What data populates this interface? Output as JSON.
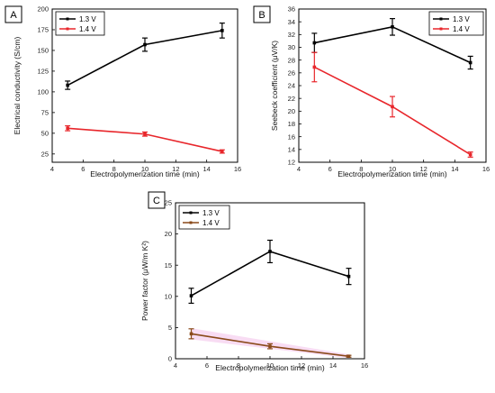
{
  "colors": {
    "series_13V": "#000000",
    "series_14V": "#e8262b",
    "series_14V_c": "#8a4a1a",
    "shade_c": "#f3c0ea"
  },
  "chart_data": [
    {
      "panel": "A",
      "type": "line",
      "xlabel": "Electropolymerization time (min)",
      "ylabel": "Electrical conductivity (S/cm)",
      "xlim": [
        4,
        16
      ],
      "ylim": [
        15,
        200
      ],
      "xticks": [
        "4",
        "6",
        "8",
        "10",
        "12",
        "14",
        "16"
      ],
      "yticks": [
        "25",
        "50",
        "75",
        "100",
        "125",
        "150",
        "175",
        "200"
      ],
      "legend_position": "top-left",
      "series": [
        {
          "name": "1.3 V",
          "color": "#000000",
          "x": [
            5,
            10,
            15
          ],
          "y": [
            108,
            157,
            174
          ],
          "err": [
            5,
            8,
            9
          ]
        },
        {
          "name": "1.4 V",
          "color": "#e8262b",
          "x": [
            5,
            10,
            15
          ],
          "y": [
            56,
            49,
            28
          ],
          "err": [
            3,
            2.5,
            2
          ]
        }
      ]
    },
    {
      "panel": "B",
      "type": "line",
      "xlabel": "Electropolymerization time (min)",
      "ylabel": "Seebeck coefficient (μV/K)",
      "xlim": [
        4,
        16
      ],
      "ylim": [
        12,
        36
      ],
      "xticks": [
        "4",
        "6",
        "8",
        "10",
        "12",
        "14",
        "16"
      ],
      "yticks": [
        "12",
        "14",
        "16",
        "18",
        "20",
        "22",
        "24",
        "26",
        "28",
        "30",
        "32",
        "34",
        "36"
      ],
      "legend_position": "top-right",
      "series": [
        {
          "name": "1.3 V",
          "color": "#000000",
          "x": [
            5,
            10,
            15
          ],
          "y": [
            30.7,
            33.2,
            27.6
          ],
          "err": [
            1.5,
            1.3,
            1.0
          ]
        },
        {
          "name": "1.4 V",
          "color": "#e8262b",
          "x": [
            5,
            10,
            15
          ],
          "y": [
            26.9,
            20.7,
            13.2
          ],
          "err": [
            2.3,
            1.6,
            0.4
          ]
        }
      ]
    },
    {
      "panel": "C",
      "type": "line",
      "xlabel": "Electropolymerization time (min)",
      "ylabel": "Power factor (μW/m K²)",
      "xlim": [
        4,
        16
      ],
      "ylim": [
        0,
        25
      ],
      "xticks": [
        "4",
        "6",
        "8",
        "10",
        "12",
        "14",
        "16"
      ],
      "yticks": [
        "0",
        "5",
        "10",
        "15",
        "20",
        "25"
      ],
      "legend_position": "top-left",
      "series": [
        {
          "name": "1.3 V",
          "color": "#000000",
          "x": [
            5,
            10,
            15
          ],
          "y": [
            10.1,
            17.2,
            13.2
          ],
          "err": [
            1.2,
            1.8,
            1.3
          ]
        },
        {
          "name": "1.4 V",
          "color": "#8a4a1a",
          "x": [
            5,
            10,
            15
          ],
          "y": [
            4.0,
            2.0,
            0.4
          ],
          "err": [
            0.8,
            0.4,
            0.15
          ]
        }
      ]
    }
  ]
}
